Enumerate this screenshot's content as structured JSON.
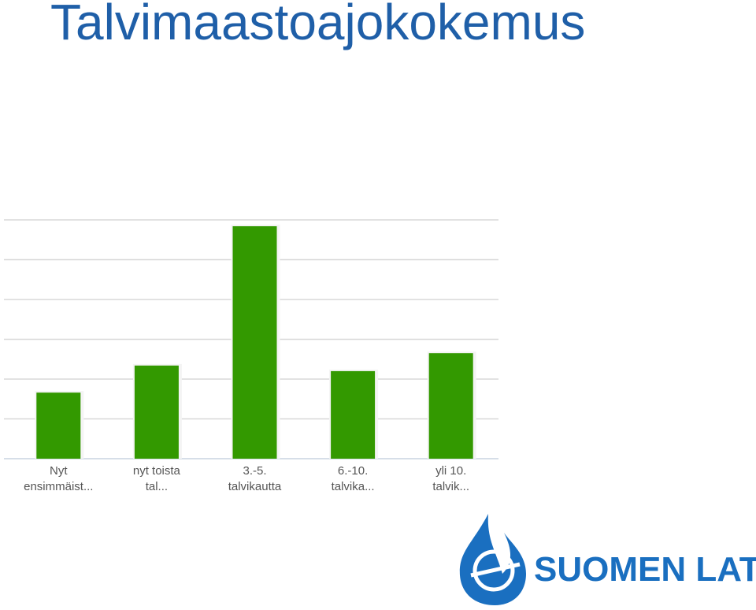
{
  "page_title": "Talvimaastoajokokemus",
  "chart_data": {
    "type": "bar",
    "categories": [
      [
        "Nyt",
        "ensimmäist..."
      ],
      [
        "nyt toista",
        "tal..."
      ],
      [
        "3.-5.",
        "talvikautta"
      ],
      [
        "6.-10.",
        "talvika..."
      ],
      [
        "yli 10.",
        "talvik..."
      ]
    ],
    "values": [
      1.66,
      2.34,
      5.84,
      2.2,
      2.65
    ],
    "color": "#339900",
    "ylim": [
      0,
      6
    ],
    "yticks": [
      0,
      1,
      2,
      3,
      4,
      5,
      6
    ],
    "grid": true
  },
  "logo": {
    "text": "SUOMEN LATU"
  }
}
